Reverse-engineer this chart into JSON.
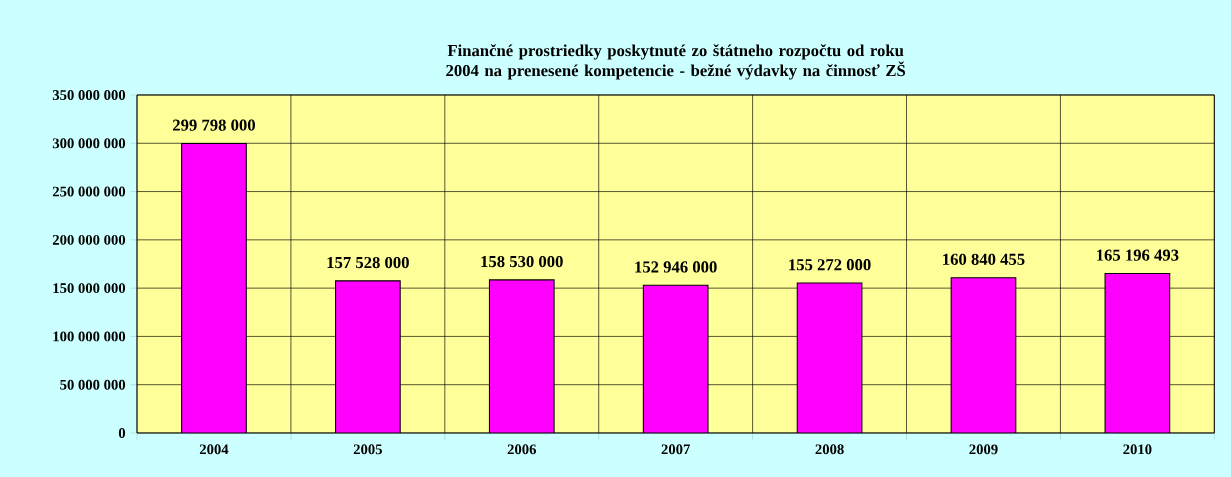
{
  "chart_data": {
    "type": "bar",
    "title": "Finančné prostriedky poskytnuté zo štátneho rozpočtu od roku  2004 na prenesené kompetencie - bežné výdavky na činnosť ZŠ",
    "categories": [
      "2004",
      "2005",
      "2006",
      "2007",
      "2008",
      "2009",
      "2010"
    ],
    "values": [
      299798000,
      157528000,
      158530000,
      152946000,
      155272000,
      160840455,
      165196493
    ],
    "value_labels": [
      "299 798 000",
      "157 528 000",
      "158 530 000",
      "152 946 000",
      "155 272 000",
      "160 840 455",
      "165 196 493"
    ],
    "color": "#ff00ff",
    "ylim": [
      0,
      350000000
    ],
    "yticks": [
      {
        "value": 0,
        "label": "0"
      },
      {
        "value": 50000000,
        "label": "50 000 000"
      },
      {
        "value": 100000000,
        "label": "100 000 000"
      },
      {
        "value": 150000000,
        "label": "150 000 000"
      },
      {
        "value": 200000000,
        "label": "200 000 000"
      },
      {
        "value": 250000000,
        "label": "250 000 000"
      },
      {
        "value": 300000000,
        "label": "300 000 000"
      },
      {
        "value": 350000000,
        "label": "350 000 000"
      }
    ],
    "grid": true
  }
}
